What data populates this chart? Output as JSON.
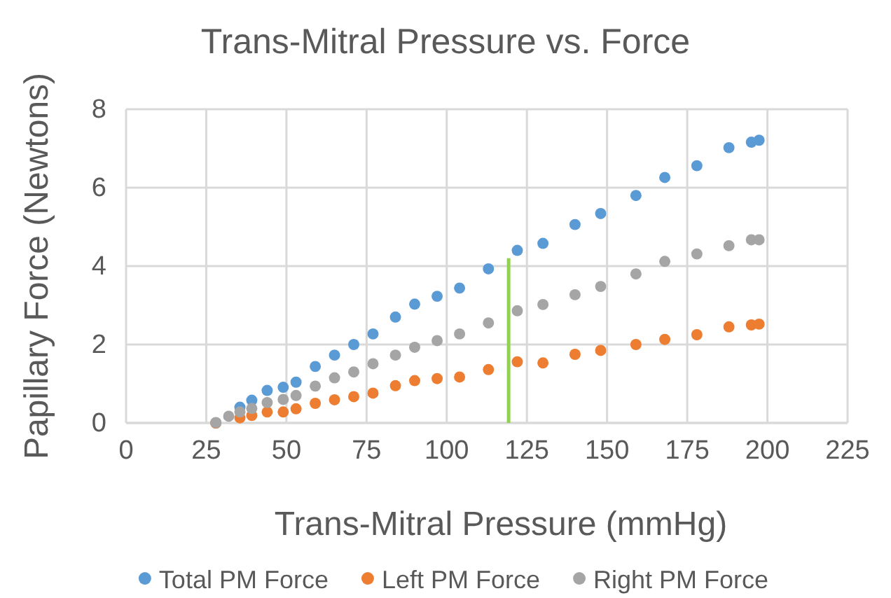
{
  "chart_data": {
    "type": "scatter",
    "title": "Trans-Mitral Pressure vs. Force",
    "xlabel": "Trans-Mitral Pressure (mmHg)",
    "ylabel": "Papillary Force (Newtons)",
    "x": [
      28,
      32,
      35.5,
      39.2,
      44,
      49,
      53,
      59,
      65,
      71,
      77,
      84,
      90,
      97,
      104,
      113,
      122,
      130,
      140,
      148,
      159,
      168,
      178,
      188,
      195,
      197.4
    ],
    "series": [
      {
        "name": "Total PM Force",
        "color": "#5b9bd5",
        "values": [
          0,
          null,
          0.4,
          0.58,
          0.83,
          0.91,
          1.04,
          1.44,
          1.73,
          2.0,
          2.27,
          2.7,
          3.03,
          3.23,
          3.44,
          3.93,
          4.4,
          4.58,
          5.06,
          5.34,
          5.8,
          6.26,
          6.56,
          7.02,
          7.16,
          7.21
        ]
      },
      {
        "name": "Left PM Force",
        "color": "#ed7d31",
        "values": [
          0,
          null,
          0.13,
          0.19,
          0.28,
          0.28,
          0.36,
          0.5,
          0.59,
          0.67,
          0.76,
          0.95,
          1.08,
          1.13,
          1.17,
          1.36,
          1.56,
          1.53,
          1.75,
          1.85,
          2.0,
          2.13,
          2.25,
          2.45,
          2.5,
          2.52
        ]
      },
      {
        "name": "Right PM Force",
        "color": "#a5a5a5",
        "values": [
          0.01,
          0.17,
          0.28,
          0.37,
          0.52,
          0.6,
          0.7,
          0.94,
          1.15,
          1.3,
          1.51,
          1.73,
          1.93,
          2.1,
          2.27,
          2.55,
          2.86,
          3.02,
          3.27,
          3.48,
          3.8,
          4.12,
          4.31,
          4.52,
          4.67,
          4.67
        ]
      },
      {
        "type": "line",
        "color": "#92d050",
        "x": [
          119.3,
          119.3
        ],
        "values": [
          0,
          4.2
        ],
        "marker": "none"
      }
    ],
    "xlim": [
      0,
      225
    ],
    "xticks": [
      0,
      25,
      50,
      75,
      100,
      125,
      150,
      175,
      200,
      225
    ],
    "ylim": [
      0,
      8
    ],
    "yticks": [
      0,
      2,
      4,
      6,
      8
    ],
    "grid": true,
    "legend": "bottom",
    "marker": "circle"
  }
}
